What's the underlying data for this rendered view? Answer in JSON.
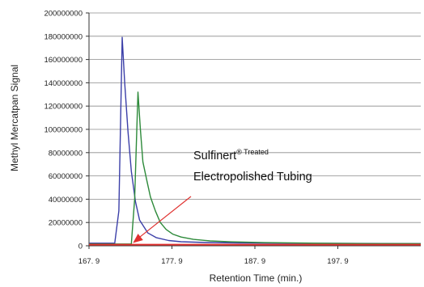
{
  "chart_data": {
    "type": "line",
    "xlabel": "Retention Time (min.)",
    "ylabel": "Methyl Mercatpan Signal",
    "xlim": [
      167.9,
      207.9
    ],
    "ylim": [
      0,
      200000000
    ],
    "x_ticks": [
      167.9,
      177.9,
      187.9,
      197.9
    ],
    "x_tick_labels": [
      "167. 9",
      "177. 9",
      "187. 9",
      "197. 9"
    ],
    "y_ticks": [
      0,
      20000000,
      40000000,
      60000000,
      80000000,
      100000000,
      120000000,
      140000000,
      160000000,
      180000000,
      200000000
    ],
    "y_tick_labels": [
      "0",
      "20000000",
      "40000000",
      "60000000",
      "80000000",
      "100000000",
      "120000000",
      "140000000",
      "160000000",
      "180000000",
      "200000000"
    ],
    "grid": true,
    "series": [
      {
        "color": "#3b3fa8",
        "x": [
          167.9,
          170.9,
          171.0,
          171.5,
          171.9,
          172.2,
          172.6,
          173.0,
          173.5,
          174.0,
          175.0,
          176.0,
          177.5,
          179.0,
          182.0,
          186.0,
          192.0,
          200.0,
          207.9
        ],
        "y": [
          2200000,
          2200000,
          2200000,
          30000000,
          179000000,
          140000000,
          98000000,
          64000000,
          38000000,
          22000000,
          11000000,
          7000000,
          4500000,
          3500000,
          2800000,
          2400000,
          2200000,
          2000000,
          1900000
        ]
      },
      {
        "color": "#2d8a3a",
        "x": [
          167.9,
          172.4,
          173.0,
          173.4,
          173.8,
          174.1,
          174.4,
          174.9,
          175.3,
          175.9,
          176.5,
          177.2,
          178.0,
          179.0,
          180.5,
          182.5,
          185.0,
          189.0,
          195.0,
          202.0,
          207.9
        ],
        "y": [
          1500000,
          1500000,
          1500000,
          40000000,
          132000000,
          100000000,
          72000000,
          55000000,
          42000000,
          30000000,
          20000000,
          14000000,
          10000000,
          7500000,
          5500000,
          4200000,
          3400000,
          2700000,
          2200000,
          1900000,
          1800000
        ]
      },
      {
        "color": "#e0312f",
        "x": [
          167.9,
          207.9
        ],
        "y": [
          1000000,
          1000000
        ]
      }
    ],
    "annotations": [
      {
        "lines": [
          "Sulfinert",
          "® Treated",
          "Electropolished Tubing"
        ],
        "points_to_x": 173.2,
        "points_to_y": 1000000
      }
    ]
  }
}
